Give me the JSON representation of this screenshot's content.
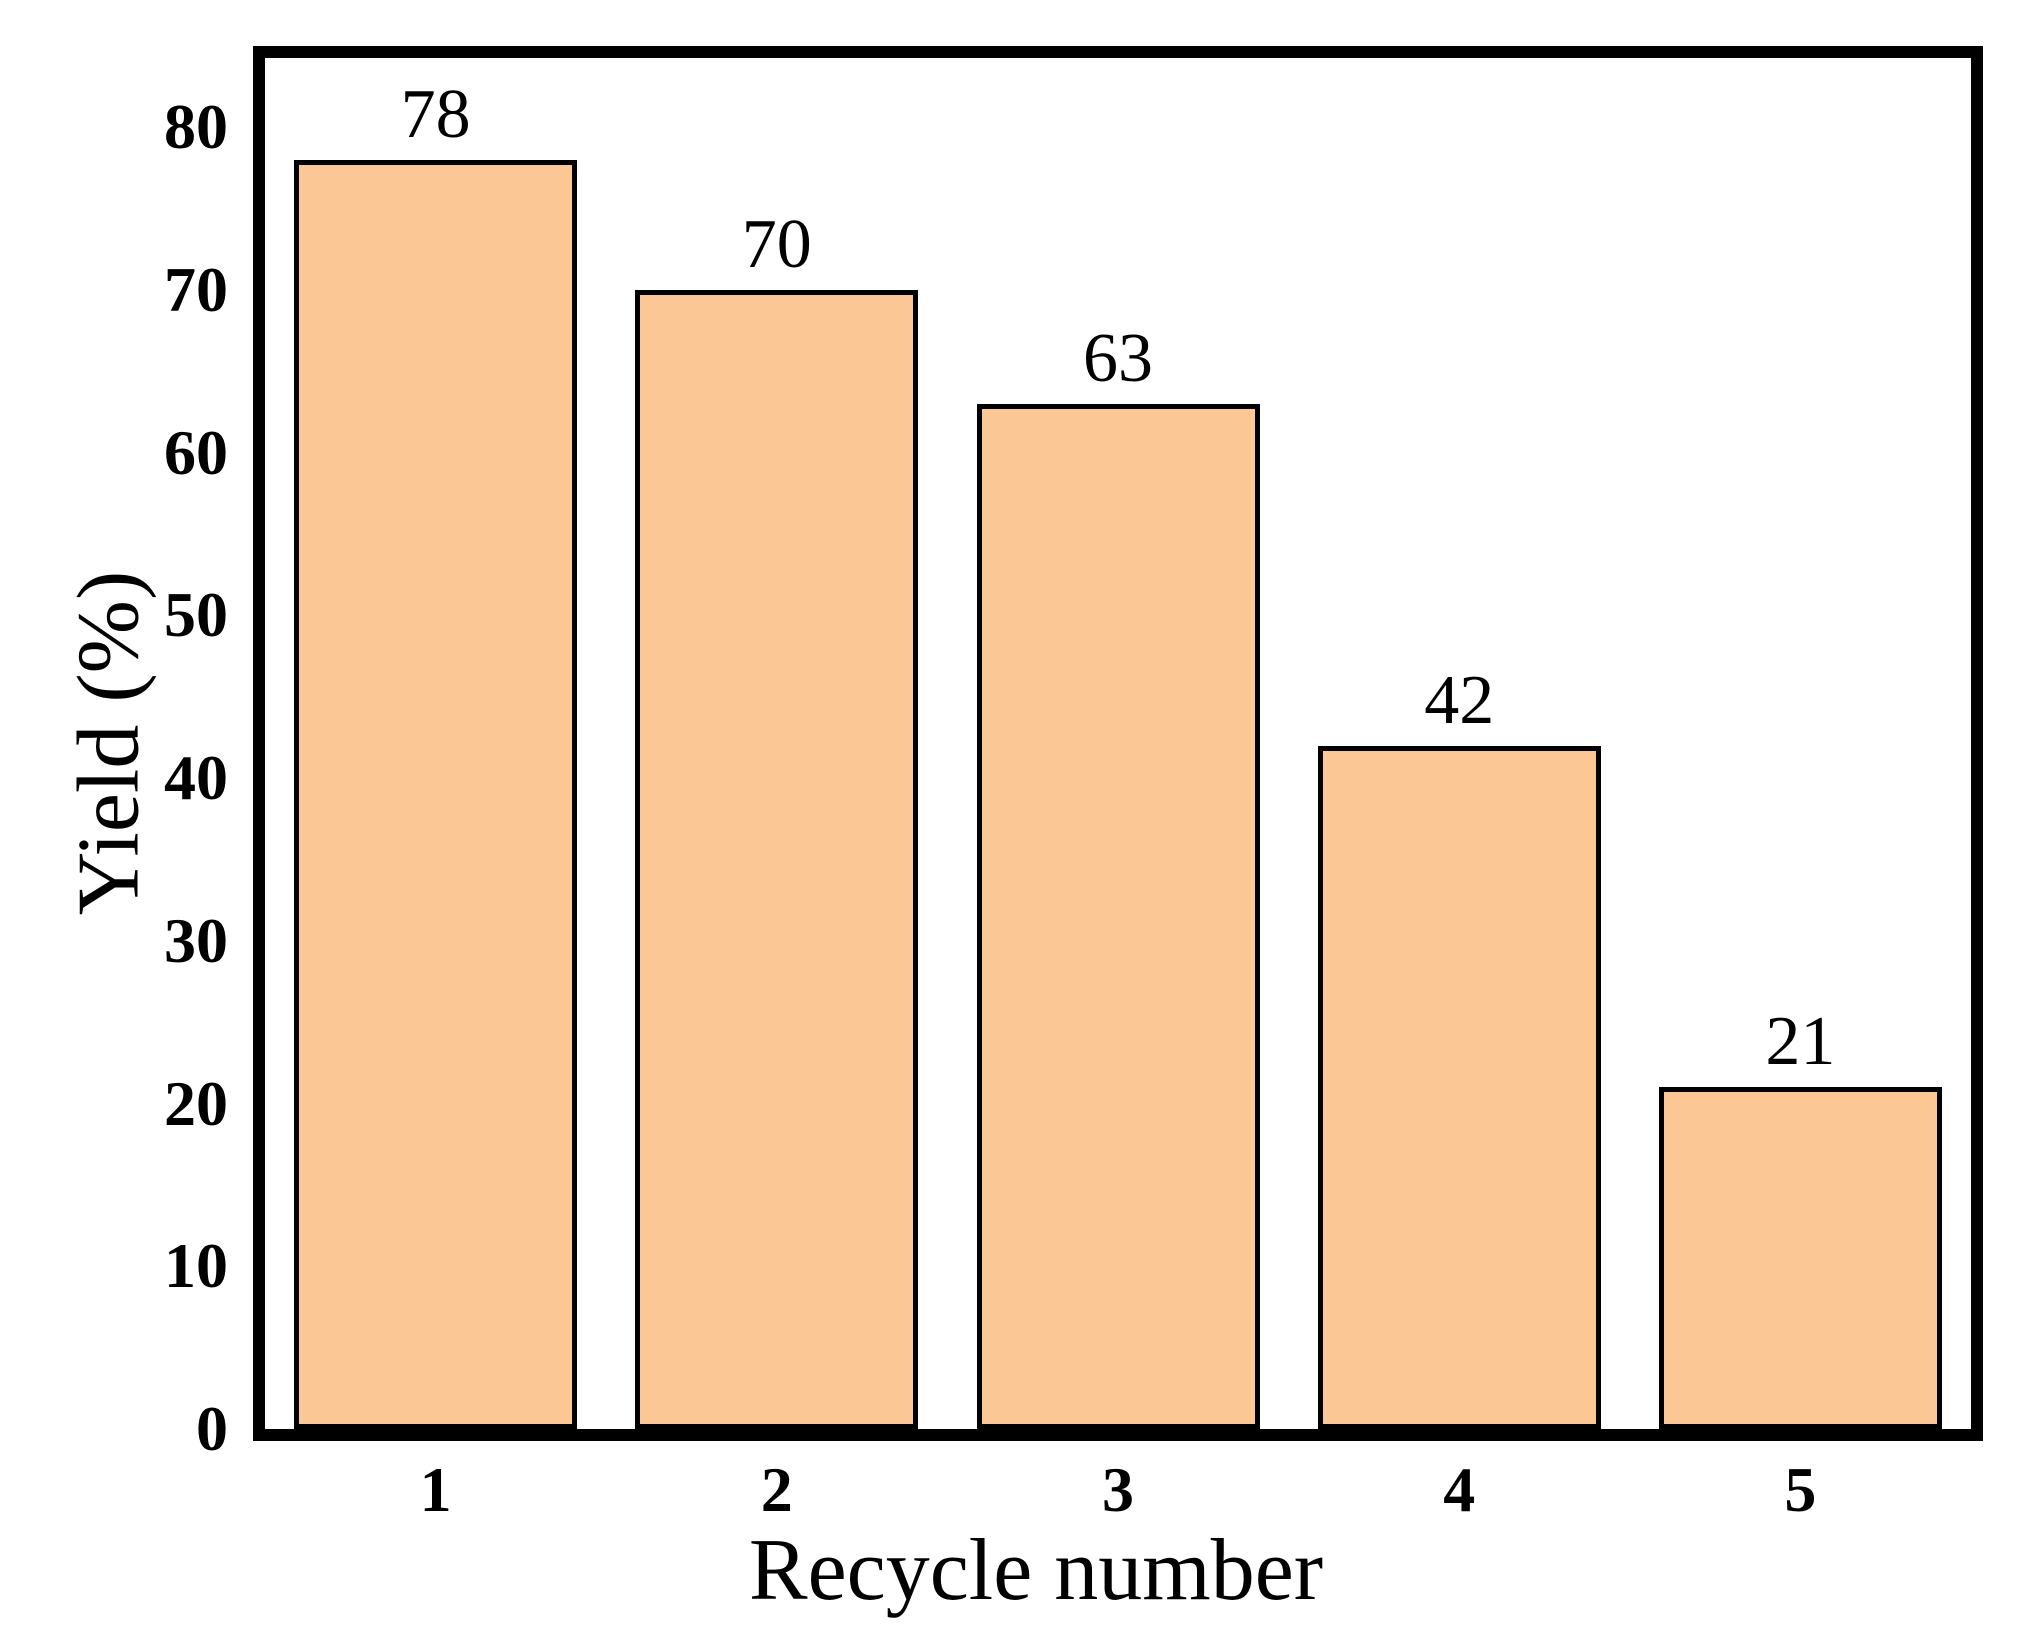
{
  "chart_data": {
    "type": "bar",
    "title": "",
    "xlabel": "Recycle number",
    "ylabel": "Yield (%)",
    "categories": [
      "1",
      "2",
      "3",
      "4",
      "5"
    ],
    "values": [
      78,
      70,
      63,
      42,
      21
    ],
    "annotations": [
      "78",
      "70",
      "63",
      "42",
      "21"
    ],
    "yticks": [
      0,
      10,
      20,
      30,
      40,
      50,
      60,
      70,
      80
    ],
    "ylim": [
      0,
      84.25
    ],
    "grid": false,
    "legend_position": "none",
    "bar_color": "#FBC795",
    "bar_edge_color": "#000000",
    "frame_color": "#000000",
    "text_color": "#000000",
    "background_color": "#FFFFFF"
  }
}
